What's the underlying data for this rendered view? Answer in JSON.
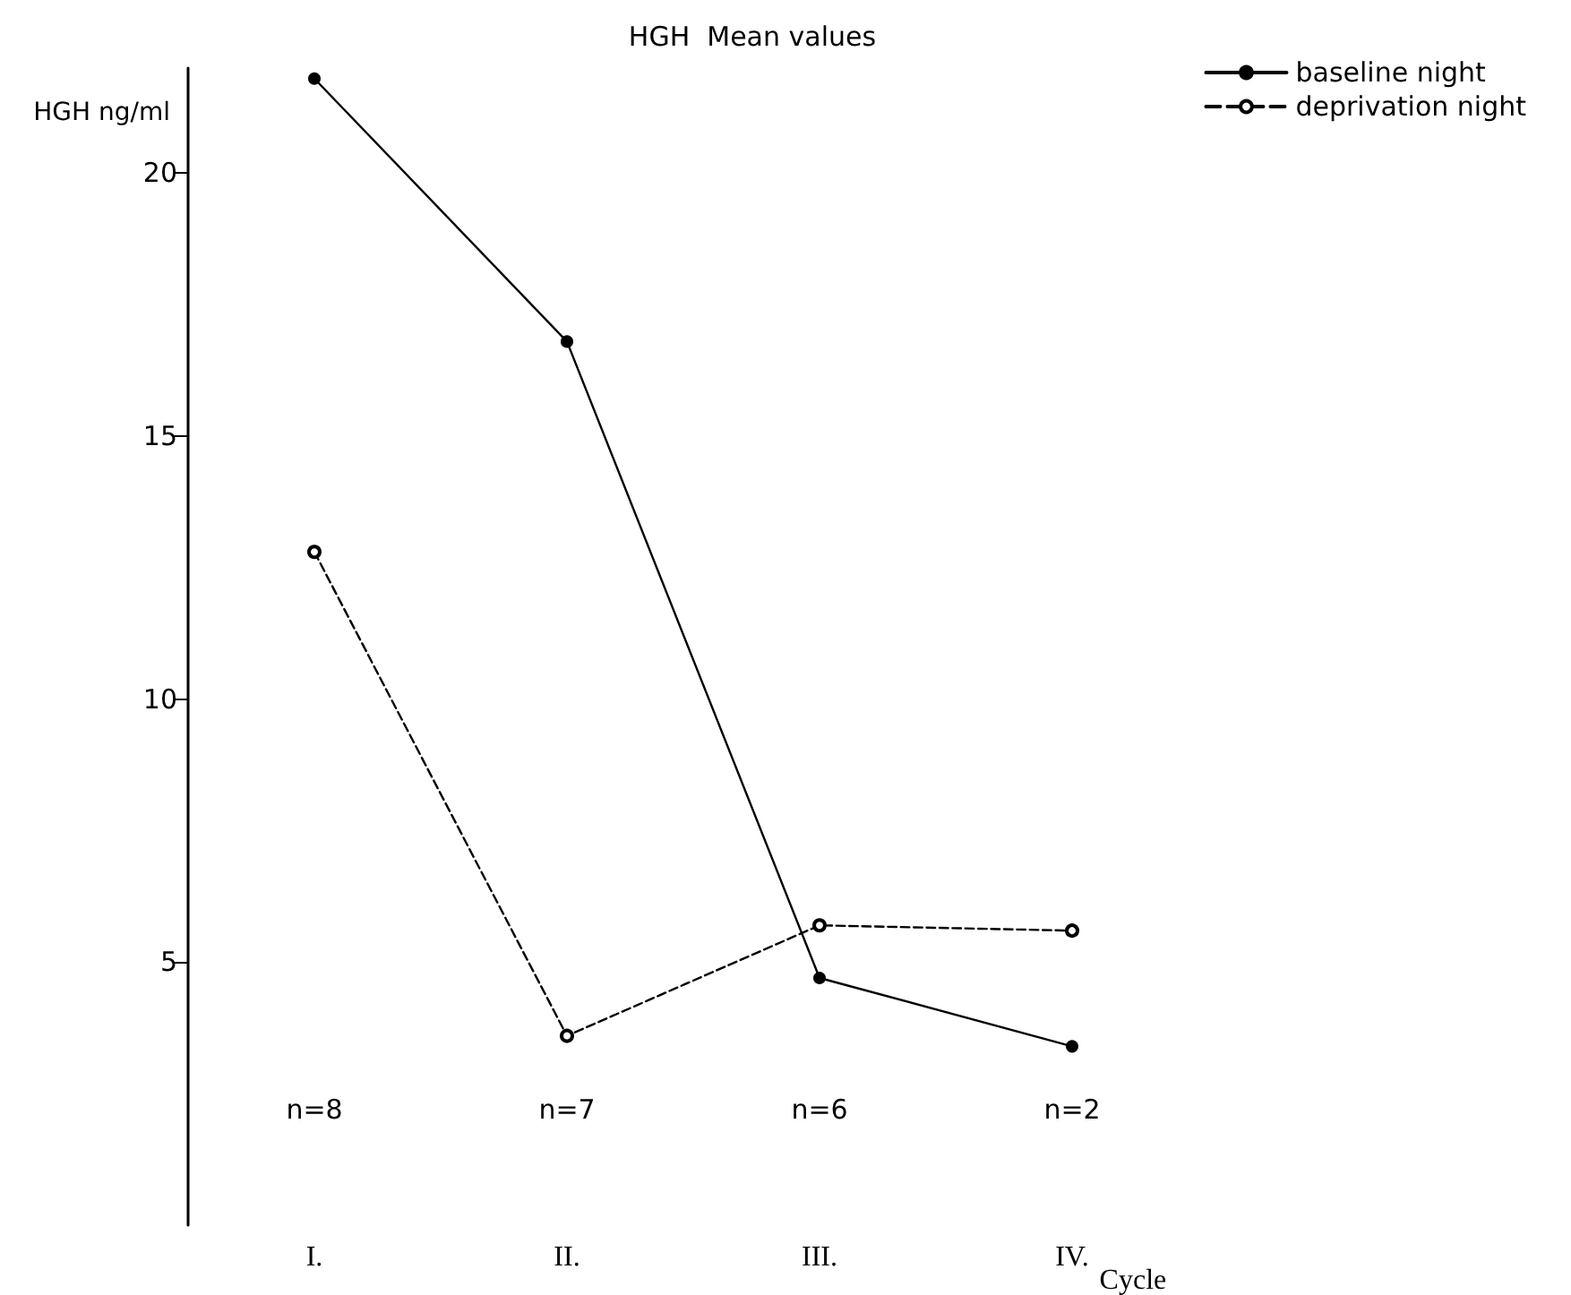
{
  "chart_data": {
    "type": "line",
    "title": "HGH  Mean values",
    "ylabel": "HGH ng/ml",
    "xlabel": "Cycle",
    "categories": [
      "I.",
      "II.",
      "III.",
      "IV."
    ],
    "series": [
      {
        "name": "baseline night",
        "color": "#000000",
        "values": [
          21.8,
          16.8,
          4.7,
          3.4
        ],
        "line_style": "solid",
        "marker": "circle"
      },
      {
        "name": "deprivation night",
        "color": "#000000",
        "values": [
          12.8,
          3.6,
          5.7,
          5.6
        ],
        "line_style": "dashed",
        "marker": "circle"
      }
    ],
    "annotations": [
      "n=8",
      "n=7",
      "n=6",
      "n=2"
    ],
    "ylim": [
      0,
      22
    ],
    "yticks": [
      5,
      10,
      15,
      20
    ],
    "grid": false,
    "legend": "top right"
  }
}
